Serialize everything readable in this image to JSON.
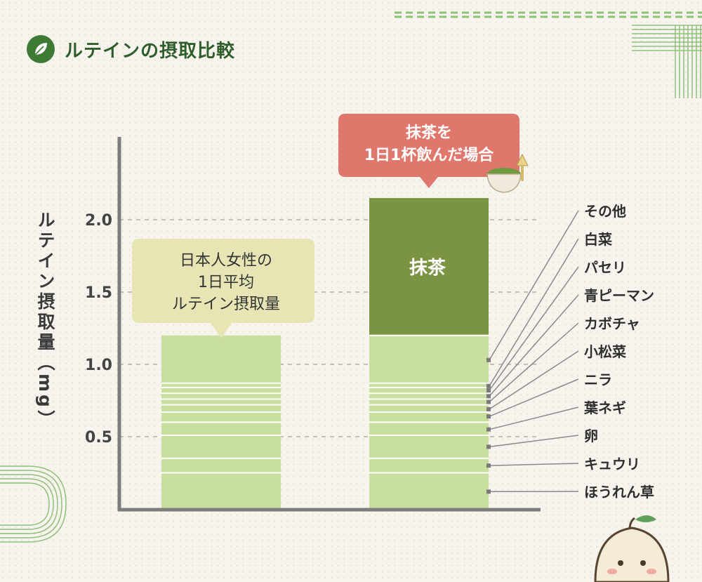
{
  "title": "ルテインの摂取比較",
  "y_axis_label": "ルテイン摂取量（mg）",
  "callouts": {
    "average": [
      "日本人女性の",
      "1日平均",
      "ルテイン摂取量"
    ],
    "matcha": [
      "抹茶を",
      "1日1杯飲んだ場合"
    ]
  },
  "colors": {
    "green_dark": "#7a9443",
    "green_light": "#c9df9d",
    "callout_yellow": "#e7e5b4",
    "callout_red": "#e0776d",
    "header_green": "#3f7a34",
    "stripe_green": "#8fc07c"
  },
  "chart_data": {
    "type": "bar",
    "stacked": true,
    "ylim": [
      0,
      2.4
    ],
    "y_ticks": [
      "0.5",
      "1.0",
      "1.5",
      "2.0"
    ],
    "y_tick_values": [
      0.5,
      1.0,
      1.5,
      2.0
    ],
    "bars": [
      {
        "callout_key": "average",
        "total": 1.2,
        "band_tops": [
          1.2,
          0.87,
          0.84,
          0.8,
          0.76,
          0.72,
          0.67,
          0.6,
          0.51,
          0.35,
          0.25
        ]
      },
      {
        "callout_key": "matcha",
        "total": 2.15,
        "band_tops": [
          1.2,
          0.87,
          0.84,
          0.8,
          0.76,
          0.72,
          0.67,
          0.6,
          0.51,
          0.35,
          0.25
        ],
        "top_segment": {
          "name": "抹茶",
          "from": 1.2,
          "to": 2.15
        }
      }
    ],
    "components": [
      "その他",
      "白菜",
      "パセリ",
      "青ピーマン",
      "カボチャ",
      "小松菜",
      "ニラ",
      "葉ネギ",
      "卵",
      "キュウリ",
      "ほうれん草"
    ],
    "component_midpoints": [
      1.03,
      0.85,
      0.82,
      0.78,
      0.74,
      0.69,
      0.64,
      0.55,
      0.43,
      0.3,
      0.12
    ]
  }
}
